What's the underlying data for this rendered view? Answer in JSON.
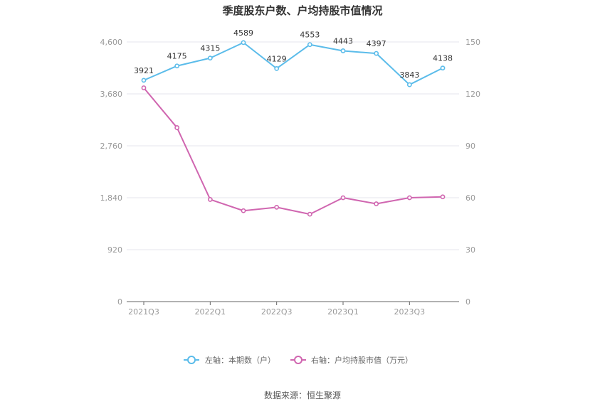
{
  "chart_data": {
    "type": "line",
    "title": "季度股东户数、户均持股市值情况",
    "x": [
      "2021Q3",
      "2021Q4",
      "2022Q1",
      "2022Q2",
      "2022Q3",
      "2022Q4",
      "2023Q1",
      "2023Q2",
      "2023Q3",
      "2023Q4"
    ],
    "x_tick_labels": [
      "2021Q3",
      "",
      "2022Q1",
      "",
      "2022Q3",
      "",
      "2023Q1",
      "",
      "2023Q3",
      ""
    ],
    "left_axis": {
      "min": 0,
      "max": 4600,
      "ticks": [
        "0",
        "920",
        "1,840",
        "2,760",
        "3,680",
        "4,600"
      ],
      "tick_values": [
        0,
        920,
        1840,
        2760,
        3680,
        4600
      ]
    },
    "right_axis": {
      "min": 0,
      "max": 150,
      "ticks": [
        "0",
        "30",
        "60",
        "90",
        "120",
        "150"
      ],
      "tick_values": [
        0,
        30,
        60,
        90,
        120,
        150
      ]
    },
    "series": [
      {
        "name": "左轴：本期数（户）",
        "axis": "left",
        "color": "#5bbcea",
        "values": [
          3921,
          4175,
          4315,
          4589,
          4129,
          4553,
          4443,
          4397,
          3843,
          4138
        ],
        "labels": [
          "3921",
          "4175",
          "4315",
          "4589",
          "4129",
          "4553",
          "4443",
          "4397",
          "3843",
          "4138"
        ]
      },
      {
        "name": "右轴：户均持股市值（万元）",
        "axis": "right",
        "color": "#d066b0",
        "values": [
          123.5,
          100.5,
          59,
          52.5,
          54.5,
          50.5,
          60,
          56.5,
          60,
          60.5
        ]
      }
    ],
    "grid": true,
    "legend_position": "bottom"
  },
  "source_text": "数据来源：恒生聚源"
}
